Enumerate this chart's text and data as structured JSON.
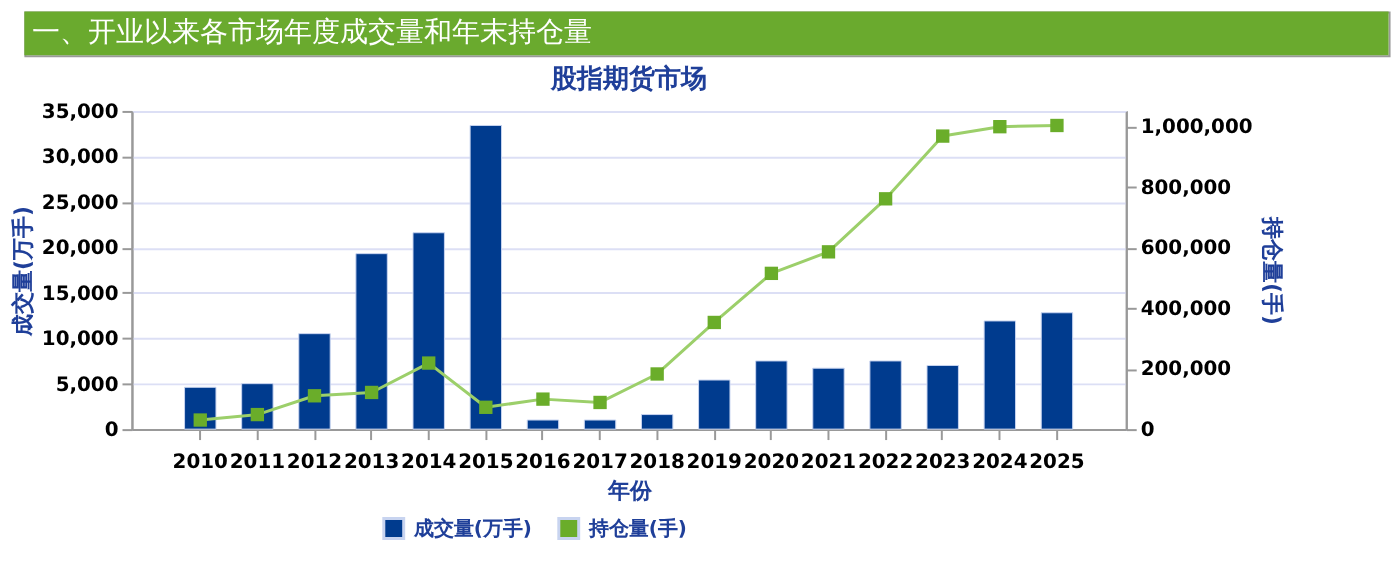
{
  "chart_data": {
    "type": "bar",
    "title": "一、开业以来各市场年度成交量和年末持仓量",
    "subtitle": "股指期货市场",
    "xlabel": "年份",
    "ylabel": "成交量(万手)",
    "y2label": "持仓量(手)",
    "categories": [
      "2010",
      "2011",
      "2012",
      "2013",
      "2014",
      "2015",
      "2016",
      "2017",
      "2018",
      "2019",
      "2020",
      "2021",
      "2022",
      "2023",
      "2024",
      "2025"
    ],
    "series": [
      {
        "name": "成交量(万手)",
        "color": "#003b8e",
        "values": [
          4600,
          5000,
          10500,
          19300,
          21600,
          33400,
          1000,
          1000,
          1600,
          5400,
          7500,
          6700,
          7500,
          7000,
          11900,
          12800
        ]
      },
      {
        "name": "持仓量(手)",
        "type": "line",
        "axis": "y2",
        "color": "#6aad2a",
        "values": [
          30000,
          48000,
          110000,
          121000,
          218000,
          72000,
          99000,
          88000,
          182000,
          352000,
          514000,
          585000,
          760000,
          967000,
          998000,
          1002000
        ]
      }
    ],
    "ylim": [
      0,
      35000
    ],
    "yticks": [
      0,
      {
        "value": 5000,
        "label": "5,000"
      },
      {
        "value": 10000,
        "label": "10,000"
      },
      {
        "value": 15000,
        "label": "15,000"
      },
      {
        "value": 20000,
        "label": "20,000"
      },
      {
        "value": 25000,
        "label": "25,000"
      },
      {
        "value": 30000,
        "label": "30,000"
      },
      {
        "value": 35000,
        "label": "35,000"
      }
    ],
    "y2lim": [
      0,
      1050000
    ],
    "y2ticks": [
      0,
      {
        "value": 200000,
        "label": "200,000"
      },
      {
        "value": 400000,
        "label": "400,000"
      },
      {
        "value": 600000,
        "label": "600,000"
      },
      {
        "value": 800000,
        "label": "800,000"
      },
      {
        "value": 1000000,
        "label": "1,000,000"
      }
    ],
    "grid": "y",
    "legend": "bottom",
    "marker": "square",
    "line_style": "solid"
  }
}
